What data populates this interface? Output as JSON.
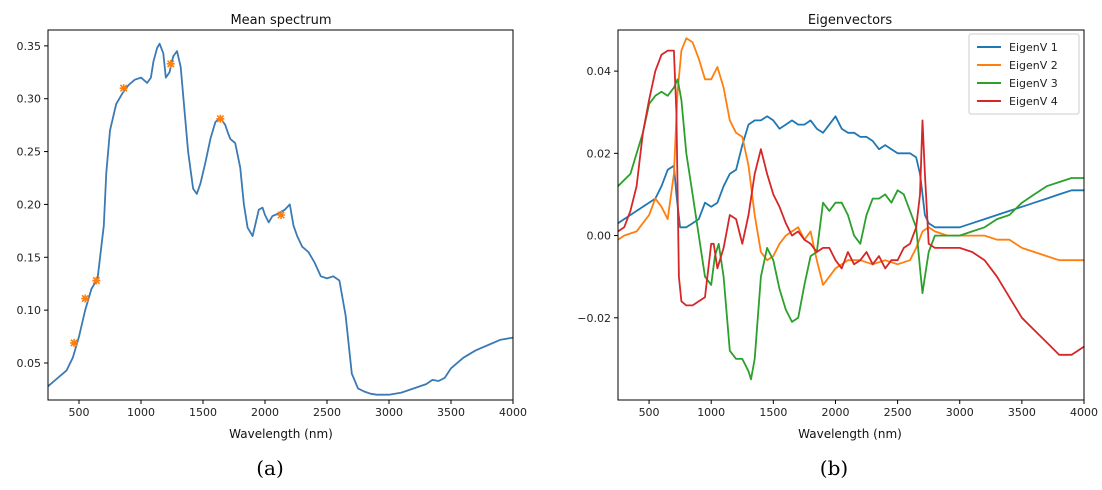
{
  "panel_labels": {
    "a": "(a)",
    "b": "(b)"
  },
  "chart_data": [
    {
      "type": "line",
      "title": "Mean spectrum",
      "xlabel": "Wavelength (nm)",
      "ylabel": "",
      "xlim": [
        250,
        4000
      ],
      "ylim": [
        0.015,
        0.365
      ],
      "xticks": [
        500,
        1000,
        1500,
        2000,
        2500,
        3000,
        3500,
        4000
      ],
      "yticks": [
        0.05,
        0.1,
        0.15,
        0.2,
        0.25,
        0.3,
        0.35
      ],
      "ytick_labels": [
        "0.05",
        "0.10",
        "0.15",
        "0.20",
        "0.25",
        "0.30",
        "0.35"
      ],
      "color": "#3b7ab5",
      "marker_color": "#ff7f0e",
      "series": [
        {
          "x": [
            250,
            300,
            350,
            400,
            450,
            500,
            550,
            600,
            650,
            700,
            720,
            750,
            800,
            850,
            900,
            950,
            1000,
            1050,
            1080,
            1100,
            1130,
            1150,
            1180,
            1200,
            1230,
            1260,
            1290,
            1320,
            1350,
            1380,
            1420,
            1450,
            1480,
            1520,
            1560,
            1600,
            1640,
            1680,
            1700,
            1720,
            1760,
            1800,
            1830,
            1860,
            1900,
            1950,
            1980,
            2000,
            2030,
            2060,
            2100,
            2130,
            2160,
            2200,
            2230,
            2260,
            2300,
            2350,
            2400,
            2450,
            2500,
            2550,
            2600,
            2650,
            2700,
            2750,
            2800,
            2850,
            2900,
            3000,
            3100,
            3200,
            3300,
            3350,
            3400,
            3450,
            3500,
            3600,
            3700,
            3800,
            3900,
            4000
          ],
          "y": [
            0.028,
            0.033,
            0.038,
            0.043,
            0.055,
            0.075,
            0.1,
            0.12,
            0.13,
            0.18,
            0.23,
            0.27,
            0.295,
            0.305,
            0.313,
            0.318,
            0.32,
            0.315,
            0.32,
            0.335,
            0.348,
            0.352,
            0.343,
            0.32,
            0.325,
            0.34,
            0.345,
            0.33,
            0.29,
            0.25,
            0.215,
            0.21,
            0.22,
            0.24,
            0.262,
            0.278,
            0.282,
            0.275,
            0.268,
            0.262,
            0.258,
            0.235,
            0.2,
            0.178,
            0.17,
            0.195,
            0.197,
            0.19,
            0.183,
            0.189,
            0.191,
            0.193,
            0.195,
            0.2,
            0.18,
            0.17,
            0.16,
            0.155,
            0.145,
            0.132,
            0.13,
            0.132,
            0.128,
            0.095,
            0.04,
            0.026,
            0.023,
            0.021,
            0.02,
            0.02,
            0.022,
            0.026,
            0.03,
            0.034,
            0.033,
            0.036,
            0.045,
            0.055,
            0.062,
            0.067,
            0.072,
            0.074
          ]
        }
      ],
      "markers": {
        "x": [
          460,
          550,
          640,
          860,
          1240,
          1640,
          2130
        ],
        "y": [
          0.069,
          0.111,
          0.128,
          0.31,
          0.333,
          0.281,
          0.19
        ]
      }
    },
    {
      "type": "line",
      "title": "Eigenvectors",
      "xlabel": "Wavelength (nm)",
      "ylabel": "",
      "xlim": [
        250,
        4000
      ],
      "ylim": [
        -0.04,
        0.05
      ],
      "xticks": [
        500,
        1000,
        1500,
        2000,
        2500,
        3000,
        3500,
        4000
      ],
      "yticks": [
        -0.02,
        0.0,
        0.02,
        0.04
      ],
      "ytick_labels": [
        "−0.02",
        "0.00",
        "0.02",
        "0.04"
      ],
      "legend": "top-right",
      "series": [
        {
          "name": "EigenV 1",
          "color": "#1f77b4",
          "x": [
            250,
            350,
            450,
            550,
            600,
            650,
            700,
            720,
            750,
            800,
            850,
            900,
            950,
            1000,
            1050,
            1100,
            1150,
            1200,
            1250,
            1300,
            1350,
            1400,
            1450,
            1500,
            1550,
            1600,
            1650,
            1700,
            1750,
            1800,
            1850,
            1900,
            1950,
            2000,
            2050,
            2100,
            2150,
            2200,
            2250,
            2300,
            2350,
            2400,
            2450,
            2500,
            2550,
            2600,
            2650,
            2680,
            2700,
            2720,
            2750,
            2800,
            2900,
            3000,
            3100,
            3200,
            3300,
            3400,
            3500,
            3600,
            3700,
            3800,
            3900,
            4000
          ],
          "y": [
            0.003,
            0.005,
            0.007,
            0.009,
            0.012,
            0.016,
            0.017,
            0.01,
            0.002,
            0.002,
            0.003,
            0.004,
            0.008,
            0.007,
            0.008,
            0.012,
            0.015,
            0.016,
            0.022,
            0.027,
            0.028,
            0.028,
            0.029,
            0.028,
            0.026,
            0.027,
            0.028,
            0.027,
            0.027,
            0.028,
            0.026,
            0.025,
            0.027,
            0.029,
            0.026,
            0.025,
            0.025,
            0.024,
            0.024,
            0.023,
            0.021,
            0.022,
            0.021,
            0.02,
            0.02,
            0.02,
            0.019,
            0.015,
            0.01,
            0.005,
            0.003,
            0.002,
            0.002,
            0.002,
            0.003,
            0.004,
            0.005,
            0.006,
            0.007,
            0.008,
            0.009,
            0.01,
            0.011,
            0.011
          ]
        },
        {
          "name": "EigenV 2",
          "color": "#ff7f0e",
          "x": [
            250,
            300,
            400,
            500,
            550,
            600,
            650,
            700,
            730,
            760,
            800,
            850,
            900,
            950,
            1000,
            1050,
            1100,
            1150,
            1200,
            1250,
            1300,
            1350,
            1400,
            1450,
            1500,
            1550,
            1600,
            1650,
            1700,
            1750,
            1800,
            1850,
            1900,
            1950,
            2000,
            2100,
            2200,
            2300,
            2400,
            2500,
            2600,
            2650,
            2700,
            2750,
            2800,
            2900,
            3000,
            3100,
            3200,
            3300,
            3400,
            3500,
            3600,
            3700,
            3800,
            3900,
            4000
          ],
          "y": [
            -0.001,
            0.0,
            0.001,
            0.005,
            0.009,
            0.007,
            0.004,
            0.015,
            0.035,
            0.045,
            0.048,
            0.047,
            0.043,
            0.038,
            0.038,
            0.041,
            0.036,
            0.028,
            0.025,
            0.024,
            0.017,
            0.005,
            -0.004,
            -0.006,
            -0.005,
            -0.002,
            0.0,
            0.001,
            0.002,
            -0.001,
            0.001,
            -0.006,
            -0.012,
            -0.01,
            -0.008,
            -0.006,
            -0.006,
            -0.007,
            -0.006,
            -0.007,
            -0.006,
            -0.003,
            0.001,
            0.002,
            0.001,
            0.0,
            0.0,
            0.0,
            0.0,
            -0.001,
            -0.001,
            -0.003,
            -0.004,
            -0.005,
            -0.006,
            -0.006,
            -0.006
          ]
        },
        {
          "name": "EigenV 3",
          "color": "#2ca02c",
          "x": [
            250,
            350,
            450,
            500,
            550,
            600,
            650,
            700,
            730,
            760,
            800,
            850,
            900,
            950,
            1000,
            1030,
            1060,
            1100,
            1150,
            1200,
            1250,
            1300,
            1320,
            1350,
            1400,
            1450,
            1500,
            1550,
            1600,
            1650,
            1700,
            1750,
            1800,
            1850,
            1900,
            1950,
            2000,
            2050,
            2100,
            2150,
            2200,
            2250,
            2300,
            2350,
            2400,
            2450,
            2500,
            2550,
            2600,
            2650,
            2680,
            2700,
            2720,
            2750,
            2800,
            2900,
            3000,
            3100,
            3200,
            3300,
            3400,
            3500,
            3600,
            3700,
            3800,
            3900,
            4000
          ],
          "y": [
            0.012,
            0.015,
            0.025,
            0.032,
            0.034,
            0.035,
            0.034,
            0.036,
            0.038,
            0.033,
            0.02,
            0.01,
            0.0,
            -0.01,
            -0.012,
            -0.005,
            -0.002,
            -0.01,
            -0.028,
            -0.03,
            -0.03,
            -0.033,
            -0.035,
            -0.03,
            -0.01,
            -0.003,
            -0.006,
            -0.013,
            -0.018,
            -0.021,
            -0.02,
            -0.012,
            -0.005,
            -0.004,
            0.008,
            0.006,
            0.008,
            0.008,
            0.005,
            0.0,
            -0.002,
            0.005,
            0.009,
            0.009,
            0.01,
            0.008,
            0.011,
            0.01,
            0.006,
            0.002,
            -0.008,
            -0.014,
            -0.01,
            -0.004,
            0.0,
            0.0,
            0.0,
            0.001,
            0.002,
            0.004,
            0.005,
            0.008,
            0.01,
            0.012,
            0.013,
            0.014,
            0.014
          ]
        },
        {
          "name": "EigenV 4",
          "color": "#d62728",
          "x": [
            250,
            300,
            350,
            400,
            450,
            500,
            550,
            600,
            650,
            700,
            720,
            740,
            760,
            800,
            850,
            900,
            950,
            1000,
            1020,
            1050,
            1100,
            1150,
            1200,
            1250,
            1300,
            1350,
            1400,
            1450,
            1500,
            1550,
            1600,
            1650,
            1700,
            1750,
            1800,
            1850,
            1900,
            1950,
            2000,
            2050,
            2100,
            2150,
            2200,
            2250,
            2300,
            2350,
            2400,
            2450,
            2500,
            2550,
            2600,
            2650,
            2680,
            2700,
            2720,
            2750,
            2800,
            2900,
            3000,
            3100,
            3200,
            3300,
            3400,
            3500,
            3600,
            3700,
            3800,
            3900,
            3950,
            4000
          ],
          "y": [
            0.001,
            0.002,
            0.006,
            0.012,
            0.025,
            0.033,
            0.04,
            0.044,
            0.045,
            0.045,
            0.03,
            -0.01,
            -0.016,
            -0.017,
            -0.017,
            -0.016,
            -0.015,
            -0.002,
            -0.002,
            -0.008,
            -0.003,
            0.005,
            0.004,
            -0.002,
            0.005,
            0.015,
            0.021,
            0.015,
            0.01,
            0.007,
            0.003,
            0.0,
            0.001,
            -0.001,
            -0.002,
            -0.004,
            -0.003,
            -0.003,
            -0.006,
            -0.008,
            -0.004,
            -0.007,
            -0.006,
            -0.004,
            -0.007,
            -0.005,
            -0.008,
            -0.006,
            -0.006,
            -0.003,
            -0.002,
            0.002,
            0.01,
            0.028,
            0.015,
            -0.002,
            -0.003,
            -0.003,
            -0.003,
            -0.004,
            -0.006,
            -0.01,
            -0.015,
            -0.02,
            -0.023,
            -0.026,
            -0.029,
            -0.029,
            -0.028,
            -0.027
          ]
        }
      ]
    }
  ]
}
